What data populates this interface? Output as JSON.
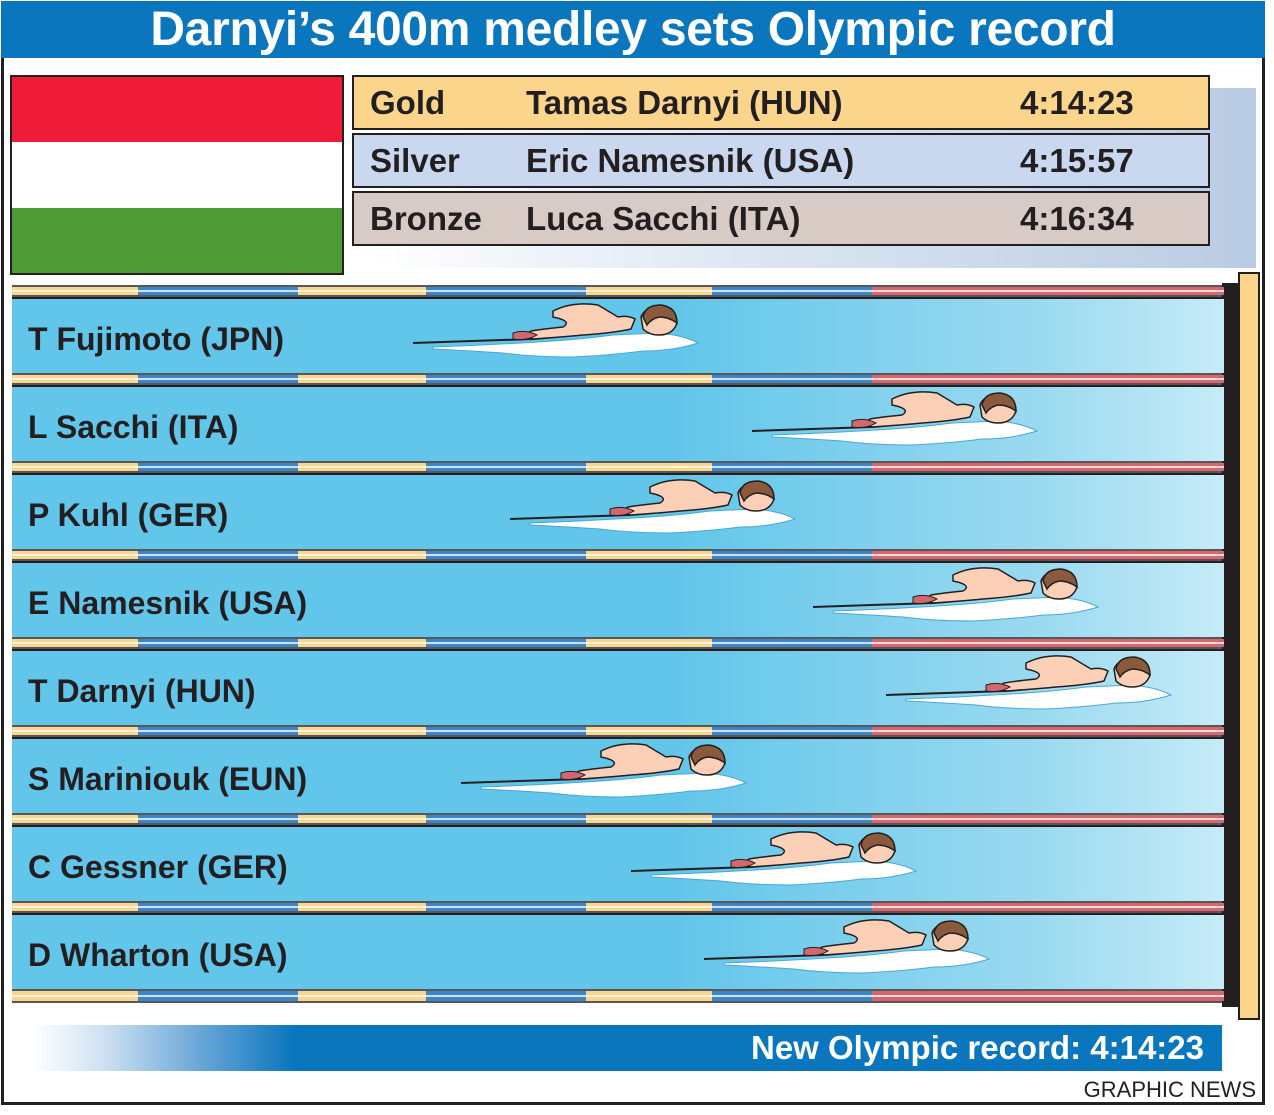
{
  "title": "Darnyi’s 400m medley sets Olympic record",
  "colors": {
    "banner": "#0a76bd",
    "flag_red": "#ee1b39",
    "flag_white": "#ffffff",
    "flag_green": "#4e9a37",
    "gold": "#fbd58b",
    "silver": "#c9d8ef",
    "bronze": "#d8cbc6",
    "water": "#62c6ea",
    "rope_yellow": "#fbd58b",
    "rope_blue": "#3a86cb",
    "rope_red": "#d4676d"
  },
  "medals": [
    {
      "medal": "Gold",
      "name": "Tamas Darnyi (HUN)",
      "time": "4:14:23"
    },
    {
      "medal": "Silver",
      "name": "Eric Namesnik (USA)",
      "time": "4:15:57"
    },
    {
      "medal": "Bronze",
      "name": "Luca Sacchi (ITA)",
      "time": "4:16:34"
    }
  ],
  "lanes": [
    {
      "label": "T Fujimoto (JPN)",
      "progress": 0.57
    },
    {
      "label": "L Sacchi (ITA)",
      "progress": 0.85
    },
    {
      "label": "P Kuhl (GER)",
      "progress": 0.65
    },
    {
      "label": "E Namesnik (USA)",
      "progress": 0.9
    },
    {
      "label": "T Darnyi (HUN)",
      "progress": 0.96
    },
    {
      "label": "S Mariniouk (EUN)",
      "progress": 0.61
    },
    {
      "label": "C Gessner (GER)",
      "progress": 0.75
    },
    {
      "label": "D Wharton (USA)",
      "progress": 0.81
    }
  ],
  "record": "New Olympic record: 4:14:23",
  "credit": "GRAPHIC NEWS"
}
